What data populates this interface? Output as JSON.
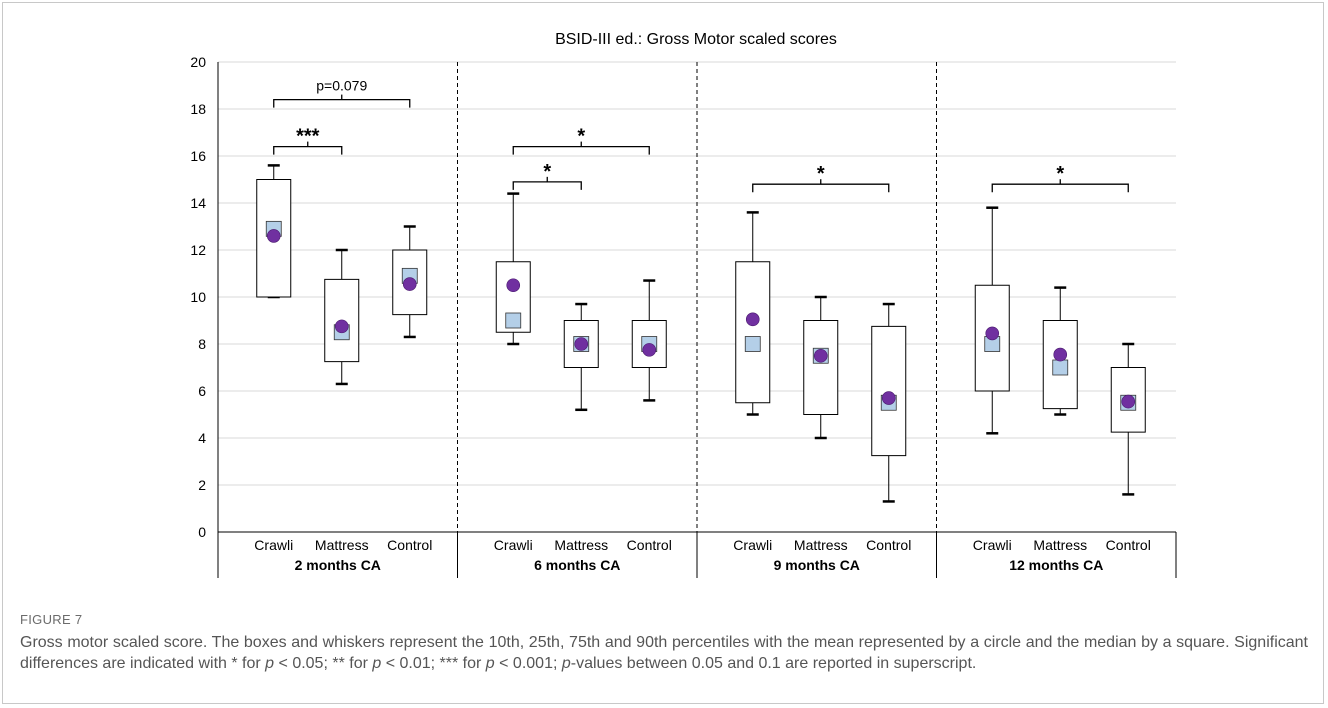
{
  "figure_label": "FIGURE 7",
  "caption": {
    "p1": "Gross motor scaled score. The boxes and whiskers represent the 10th, 25th, 75th and 90th percentiles with the mean represented by a circle and the median by a square. Significant differences are indicated with * for ",
    "p_a": "p",
    "p2": " < 0.05; ** for ",
    "p_b": "p",
    "p3": " < 0.01; *** for ",
    "p_c": "p",
    "p4": " < 0.001; ",
    "p_d": "p",
    "p5": "-values between 0.05 and 0.1 are reported in superscript."
  },
  "colors": {
    "mean_marker": "#7030a0",
    "median_marker": "#b4cfe8",
    "box_stroke": "#000000",
    "grid": "#d9d9d9"
  },
  "chart_data": {
    "type": "box",
    "title": "BSID-III ed.: Gross Motor scaled scores",
    "ylim": [
      0,
      20
    ],
    "yticks": [
      0,
      2,
      4,
      6,
      8,
      10,
      12,
      14,
      16,
      18,
      20
    ],
    "grid": "horizontal",
    "legend": "none",
    "groups": [
      {
        "label": "2 months CA",
        "boxes": [
          {
            "name": "Crawli",
            "p10": 10.0,
            "p25": 10.0,
            "median": 12.9,
            "p75": 15.0,
            "p90": 15.6,
            "mean": 12.6
          },
          {
            "name": "Mattress",
            "p10": 6.3,
            "p25": 7.25,
            "median": 8.5,
            "p75": 10.75,
            "p90": 12.0,
            "mean": 8.75
          },
          {
            "name": "Control",
            "p10": 8.3,
            "p25": 9.25,
            "median": 10.9,
            "p75": 12.0,
            "p90": 13.0,
            "mean": 10.55
          }
        ],
        "brackets": [
          {
            "from": 0,
            "to": 2,
            "label": "p=0.079",
            "y": 18.4
          },
          {
            "from": 0,
            "to": 1,
            "label": "***",
            "y": 16.4
          }
        ]
      },
      {
        "label": "6 months CA",
        "boxes": [
          {
            "name": "Crawli",
            "p10": 8.0,
            "p25": 8.5,
            "median": 9.0,
            "p75": 11.5,
            "p90": 14.4,
            "mean": 10.5
          },
          {
            "name": "Mattress",
            "p10": 5.2,
            "p25": 7.0,
            "median": 8.0,
            "p75": 9.0,
            "p90": 9.7,
            "mean": 8.0
          },
          {
            "name": "Control",
            "p10": 5.6,
            "p25": 7.0,
            "median": 8.0,
            "p75": 9.0,
            "p90": 10.7,
            "mean": 7.75
          }
        ],
        "brackets": [
          {
            "from": 0,
            "to": 2,
            "label": "*",
            "y": 16.4
          },
          {
            "from": 0,
            "to": 1,
            "label": "*",
            "y": 14.9
          }
        ]
      },
      {
        "label": "9 months CA",
        "boxes": [
          {
            "name": "Crawli",
            "p10": 5.0,
            "p25": 5.5,
            "median": 8.0,
            "p75": 11.5,
            "p90": 13.6,
            "mean": 9.05
          },
          {
            "name": "Mattress",
            "p10": 4.0,
            "p25": 5.0,
            "median": 7.5,
            "p75": 9.0,
            "p90": 10.0,
            "mean": 7.5
          },
          {
            "name": "Control",
            "p10": 1.3,
            "p25": 3.25,
            "median": 5.5,
            "p75": 8.75,
            "p90": 9.7,
            "mean": 5.7
          }
        ],
        "brackets": [
          {
            "from": 0,
            "to": 2,
            "label": "*",
            "y": 14.8
          }
        ]
      },
      {
        "label": "12 months CA",
        "boxes": [
          {
            "name": "Crawli",
            "p10": 4.2,
            "p25": 6.0,
            "median": 8.0,
            "p75": 10.5,
            "p90": 13.8,
            "mean": 8.45
          },
          {
            "name": "Mattress",
            "p10": 5.0,
            "p25": 5.25,
            "median": 7.0,
            "p75": 9.0,
            "p90": 10.4,
            "mean": 7.55
          },
          {
            "name": "Control",
            "p10": 1.6,
            "p25": 4.25,
            "median": 5.5,
            "p75": 7.0,
            "p90": 8.0,
            "mean": 5.55
          }
        ],
        "brackets": [
          {
            "from": 0,
            "to": 2,
            "label": "*",
            "y": 14.8
          }
        ]
      }
    ]
  }
}
